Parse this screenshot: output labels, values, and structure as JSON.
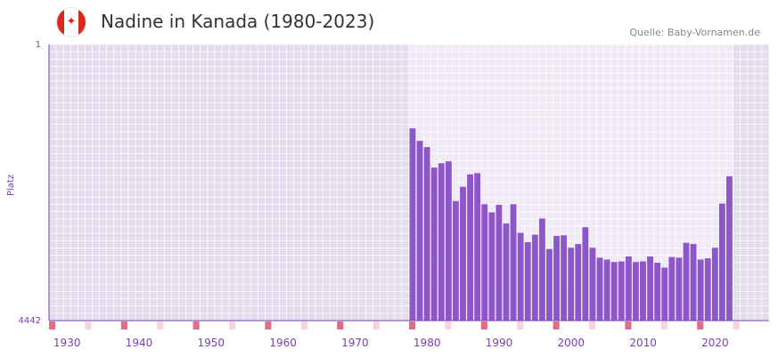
{
  "header": {
    "title": "Nadine in Kanada (1980-2023)",
    "source": "Quelle: Baby-Vornamen.de",
    "flag": "canada-flag-icon",
    "flag_glyph": "✦"
  },
  "colors": {
    "bar": "#8e57c9",
    "plot_bg": "#e3dcec",
    "range_bg": "#efeaf6",
    "axis": "#7a3fb4",
    "tick": "#7a3fb4",
    "marker_major": "#e06f82",
    "marker_minor": "#f7d3dc"
  },
  "chart_data": {
    "type": "bar",
    "title": "Nadine in Kanada (1980-2023)",
    "xlabel": "",
    "ylabel": "Platz",
    "ylim": [
      4442,
      1
    ],
    "y_ticks": [
      "1",
      "4442"
    ],
    "xlim": [
      1928,
      2028
    ],
    "highlight_range": [
      1978,
      2022
    ],
    "x_ticks": [
      "1930",
      "1940",
      "1950",
      "1960",
      "1970",
      "1980",
      "1990",
      "2000",
      "2010",
      "2020"
    ],
    "x_tick_values": [
      1930,
      1940,
      1950,
      1960,
      1970,
      1980,
      1990,
      2000,
      2010,
      2020
    ],
    "years": [
      1978,
      1979,
      1980,
      1981,
      1982,
      1983,
      1984,
      1985,
      1986,
      1987,
      1988,
      1989,
      1990,
      1991,
      1992,
      1993,
      1994,
      1995,
      1996,
      1997,
      1998,
      1999,
      2000,
      2001,
      2002,
      2003,
      2004,
      2005,
      2006,
      2007,
      2008,
      2009,
      2010,
      2011,
      2012,
      2013,
      2014,
      2015,
      2016,
      2017,
      2018,
      2019,
      2020,
      2021,
      2022
    ],
    "values": [
      1350,
      1550,
      1650,
      1980,
      1910,
      1880,
      2520,
      2290,
      2090,
      2070,
      2570,
      2700,
      2580,
      2880,
      2570,
      3030,
      3180,
      3060,
      2800,
      3290,
      3080,
      3070,
      3270,
      3210,
      2940,
      3270,
      3430,
      3460,
      3500,
      3490,
      3410,
      3500,
      3490,
      3410,
      3510,
      3590,
      3420,
      3430,
      3190,
      3210,
      3460,
      3440,
      3270,
      2560,
      2120
    ]
  }
}
